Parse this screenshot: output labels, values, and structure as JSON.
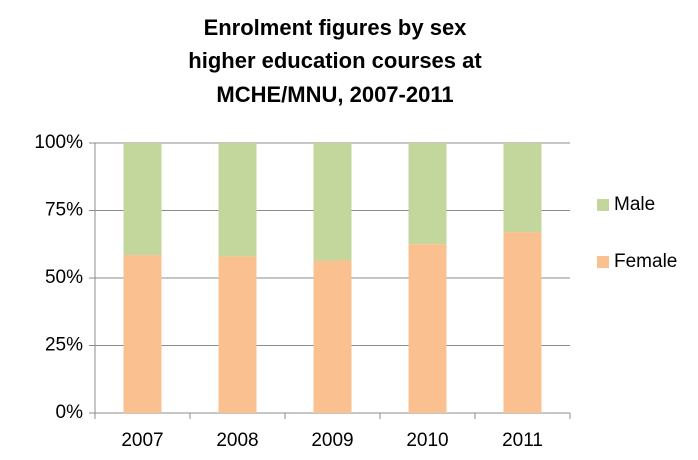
{
  "chart_data": {
    "type": "stacked_bar",
    "title": [
      "Enrolment figures by sex",
      "higher education courses at",
      "MCHE/MNU, 2007-2011"
    ],
    "categories": [
      "2007",
      "2008",
      "2009",
      "2010",
      "2011"
    ],
    "series": [
      {
        "name": "Female",
        "color": "#fac090",
        "values": [
          58.5,
          58,
          56.5,
          62.5,
          67
        ]
      },
      {
        "name": "Male",
        "color": "#c3d69b",
        "values": [
          41.5,
          42,
          43.5,
          37.5,
          33
        ]
      }
    ],
    "ylim": [
      0,
      100
    ],
    "yticks": [
      {
        "value": 0,
        "label": "0%"
      },
      {
        "value": 25,
        "label": "25%"
      },
      {
        "value": 50,
        "label": "50%"
      },
      {
        "value": 75,
        "label": "75%"
      },
      {
        "value": 100,
        "label": "100%"
      }
    ],
    "grid": true,
    "legend": "right"
  }
}
